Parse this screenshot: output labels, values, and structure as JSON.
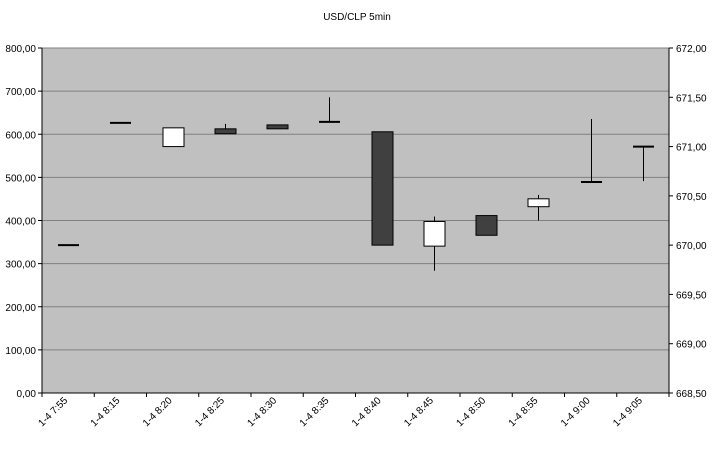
{
  "chart_data": {
    "type": "candlestick",
    "title": "USD/CLP  5min",
    "colors": {
      "plot_bg": "#c0c0c0",
      "grid": "#808080",
      "up_body": "#ffffff",
      "down_body": "#404040",
      "line": "#000000"
    },
    "y_left": {
      "ticks": [
        "800,00",
        "700,00",
        "600,00",
        "500,00",
        "400,00",
        "300,00",
        "200,00",
        "100,00",
        "0,00"
      ],
      "range": [
        0,
        800
      ]
    },
    "y_right": {
      "ticks": [
        "672,00",
        "671,50",
        "671,00",
        "670,50",
        "670,00",
        "669,50",
        "669,00",
        "668,50"
      ],
      "range": [
        668.5,
        672.0
      ]
    },
    "grid": true,
    "categories": [
      "1-4 7:55",
      "1-4 8:15",
      "1-4 8:20",
      "1-4 8:25",
      "1-4 8:30",
      "1-4 8:35",
      "1-4 8:40",
      "1-4 8:45",
      "1-4 8:50",
      "1-4 8:55",
      "1-4 9:00",
      "1-4 9:05"
    ],
    "candles": [
      {
        "open": 670.0,
        "high": 670.0,
        "low": 670.0,
        "close": 670.0
      },
      {
        "open": 671.24,
        "high": 671.24,
        "low": 671.24,
        "close": 671.24
      },
      {
        "open": 671.0,
        "high": 671.19,
        "low": 671.0,
        "close": 671.19
      },
      {
        "open": 671.18,
        "high": 671.23,
        "low": 671.13,
        "close": 671.13
      },
      {
        "open": 671.22,
        "high": 671.22,
        "low": 671.18,
        "close": 671.18
      },
      {
        "open": 671.25,
        "high": 671.5,
        "low": 671.25,
        "close": 671.25
      },
      {
        "open": 671.15,
        "high": 671.15,
        "low": 670.0,
        "close": 670.0
      },
      {
        "open": 669.99,
        "high": 670.29,
        "low": 669.74,
        "close": 670.24
      },
      {
        "open": 670.3,
        "high": 670.3,
        "low": 670.1,
        "close": 670.1
      },
      {
        "open": 670.39,
        "high": 670.51,
        "low": 670.25,
        "close": 670.47
      },
      {
        "open": 670.64,
        "high": 671.28,
        "low": 670.64,
        "close": 670.64
      },
      {
        "open": 671.0,
        "high": 671.0,
        "low": 670.65,
        "close": 671.0
      }
    ]
  }
}
